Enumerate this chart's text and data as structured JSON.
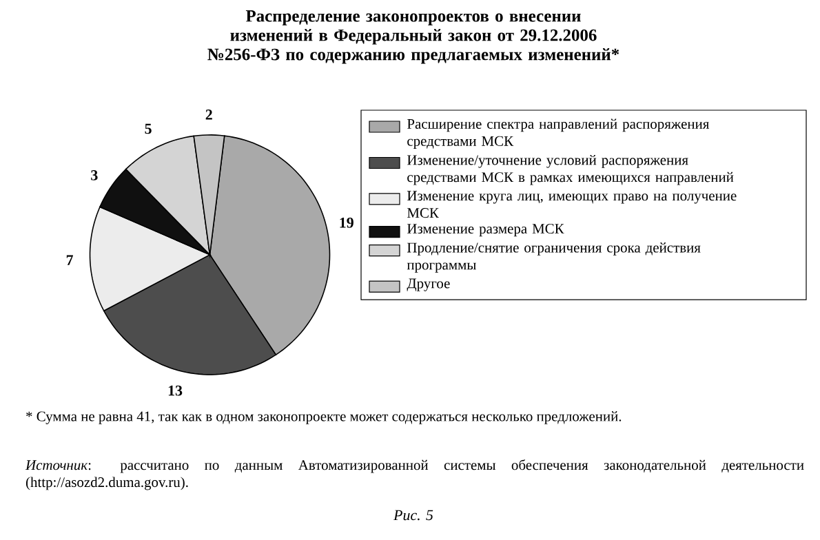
{
  "chart_data": {
    "type": "pie",
    "title": "Распределение законопроектов о внесении изменений в Федеральный закон от 29.12.2006 №256-ФЗ по содержанию предлагаемых изменений*",
    "categories": [
      "Расширение спектра направлений распоряжения средствами МСК",
      "Изменение/уточнение условий распоряжения средствами МСК в рамках имеющихся направлений",
      "Изменение круга лиц, имеющих право на получение МСК",
      "Изменение размера МСК",
      "Продление/снятие ограничения срока действия программы",
      "Другое"
    ],
    "values": [
      19,
      13,
      7,
      3,
      5,
      2
    ],
    "colors": [
      "#a9a9a9",
      "#4d4d4d",
      "#ececec",
      "#101010",
      "#d4d4d4",
      "#c4c4c4"
    ],
    "data_labels": true,
    "legend": "right",
    "annotations": [
      "* Сумма не равна 41, так как в одном законопроекте может содержаться несколько предложений.",
      "*Источник*: рассчитано по данным Автоматизированной системы обеспечения законодательной деятельности (http://asozd2.duma.gov.ru).",
      "Рис. 5"
    ]
  }
}
